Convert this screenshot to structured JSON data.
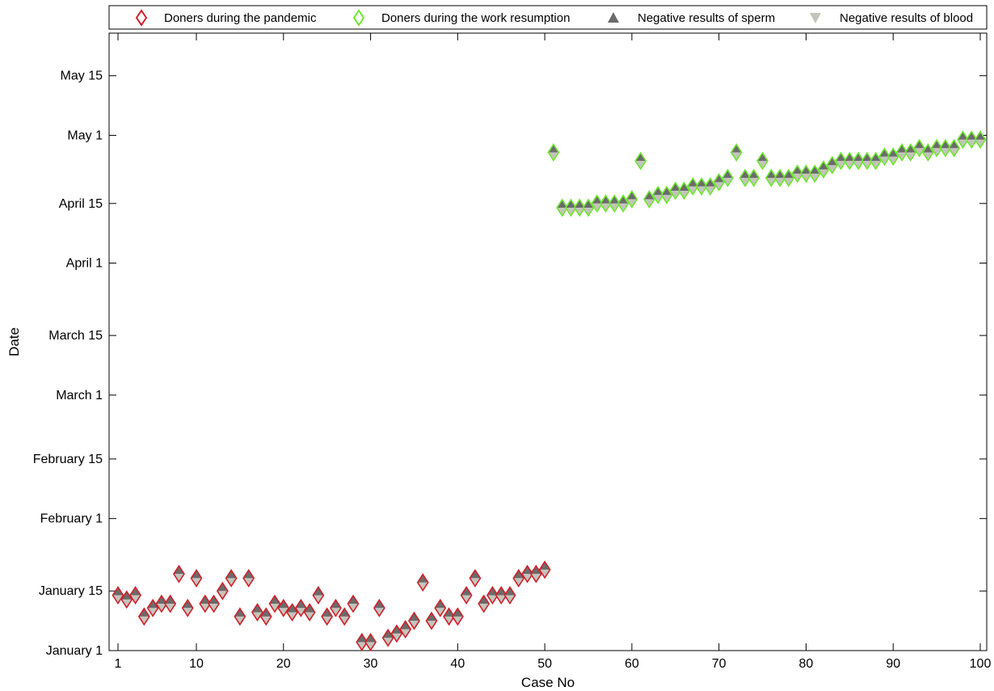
{
  "chart_data": {
    "type": "scatter",
    "xlabel": "Case No",
    "ylabel": "Date",
    "xlim": [
      0.5,
      100.5
    ],
    "ylim": [
      "2020-01-01",
      "2020-05-25"
    ],
    "x_ticks": [
      1,
      10,
      20,
      30,
      40,
      50,
      60,
      70,
      80,
      90,
      100
    ],
    "y_ticks": [
      {
        "date": "2020-01-01",
        "label": "January 1"
      },
      {
        "date": "2020-01-15",
        "label": "January 15"
      },
      {
        "date": "2020-02-01",
        "label": "February 1"
      },
      {
        "date": "2020-02-15",
        "label": "February 15"
      },
      {
        "date": "2020-03-01",
        "label": "March 1"
      },
      {
        "date": "2020-03-15",
        "label": "March 15"
      },
      {
        "date": "2020-04-01",
        "label": "April 1"
      },
      {
        "date": "2020-04-15",
        "label": "April 15"
      },
      {
        "date": "2020-05-01",
        "label": "May 1"
      },
      {
        "date": "2020-05-15",
        "label": "May 15"
      }
    ],
    "grid": false,
    "legend_position": "top",
    "series": [
      {
        "name": "Doners during the pandemic",
        "marker": "diamond",
        "color": "#d0202a",
        "x": [
          1,
          2,
          3,
          4,
          5,
          6,
          7,
          8,
          9,
          10,
          11,
          12,
          13,
          14,
          15,
          16,
          17,
          18,
          19,
          20,
          21,
          22,
          23,
          24,
          25,
          26,
          27,
          28,
          29,
          30,
          31,
          32,
          33,
          34,
          35,
          36,
          37,
          38,
          39,
          40,
          41,
          42,
          43,
          44,
          45,
          46,
          47,
          48,
          49,
          50
        ],
        "y": [
          "2020-01-14",
          "2020-01-13",
          "2020-01-14",
          "2020-01-09",
          "2020-01-11",
          "2020-01-12",
          "2020-01-12",
          "2020-01-19",
          "2020-01-11",
          "2020-01-18",
          "2020-01-12",
          "2020-01-12",
          "2020-01-15",
          "2020-01-18",
          "2020-01-09",
          "2020-01-18",
          "2020-01-10",
          "2020-01-09",
          "2020-01-12",
          "2020-01-11",
          "2020-01-10",
          "2020-01-11",
          "2020-01-10",
          "2020-01-14",
          "2020-01-09",
          "2020-01-11",
          "2020-01-09",
          "2020-01-12",
          "2020-01-03",
          "2020-01-03",
          "2020-01-11",
          "2020-01-04",
          "2020-01-05",
          "2020-01-06",
          "2020-01-08",
          "2020-01-17",
          "2020-01-08",
          "2020-01-11",
          "2020-01-09",
          "2020-01-09",
          "2020-01-14",
          "2020-01-18",
          "2020-01-12",
          "2020-01-14",
          "2020-01-14",
          "2020-01-14",
          "2020-01-18",
          "2020-01-19",
          "2020-01-19",
          "2020-01-20"
        ]
      },
      {
        "name": "Doners during the work resumption",
        "marker": "diamond",
        "color": "#6ee830",
        "x": [
          51,
          52,
          53,
          54,
          55,
          56,
          57,
          58,
          59,
          60,
          61,
          62,
          63,
          64,
          65,
          66,
          67,
          68,
          69,
          70,
          71,
          72,
          73,
          74,
          75,
          76,
          77,
          78,
          79,
          80,
          81,
          82,
          83,
          84,
          85,
          86,
          87,
          88,
          89,
          90,
          91,
          92,
          93,
          94,
          95,
          96,
          97,
          98,
          99,
          100
        ],
        "y": [
          "2020-04-27",
          "2020-04-14",
          "2020-04-14",
          "2020-04-14",
          "2020-04-14",
          "2020-04-15",
          "2020-04-15",
          "2020-04-15",
          "2020-04-15",
          "2020-04-16",
          "2020-04-25",
          "2020-04-16",
          "2020-04-17",
          "2020-04-17",
          "2020-04-18",
          "2020-04-18",
          "2020-04-19",
          "2020-04-19",
          "2020-04-19",
          "2020-04-20",
          "2020-04-21",
          "2020-04-27",
          "2020-04-21",
          "2020-04-21",
          "2020-04-25",
          "2020-04-21",
          "2020-04-21",
          "2020-04-21",
          "2020-04-22",
          "2020-04-22",
          "2020-04-22",
          "2020-04-23",
          "2020-04-24",
          "2020-04-25",
          "2020-04-25",
          "2020-04-25",
          "2020-04-25",
          "2020-04-25",
          "2020-04-26",
          "2020-04-26",
          "2020-04-27",
          "2020-04-27",
          "2020-04-28",
          "2020-04-27",
          "2020-04-28",
          "2020-04-28",
          "2020-04-28",
          "2020-04-30",
          "2020-04-30",
          "2020-04-30"
        ]
      },
      {
        "name": "Negative results of sperm",
        "marker": "triangle-up",
        "color": "#6b6b6b"
      },
      {
        "name": "Negative results of blood",
        "marker": "triangle-down",
        "color": "#c4c4bc"
      }
    ]
  }
}
